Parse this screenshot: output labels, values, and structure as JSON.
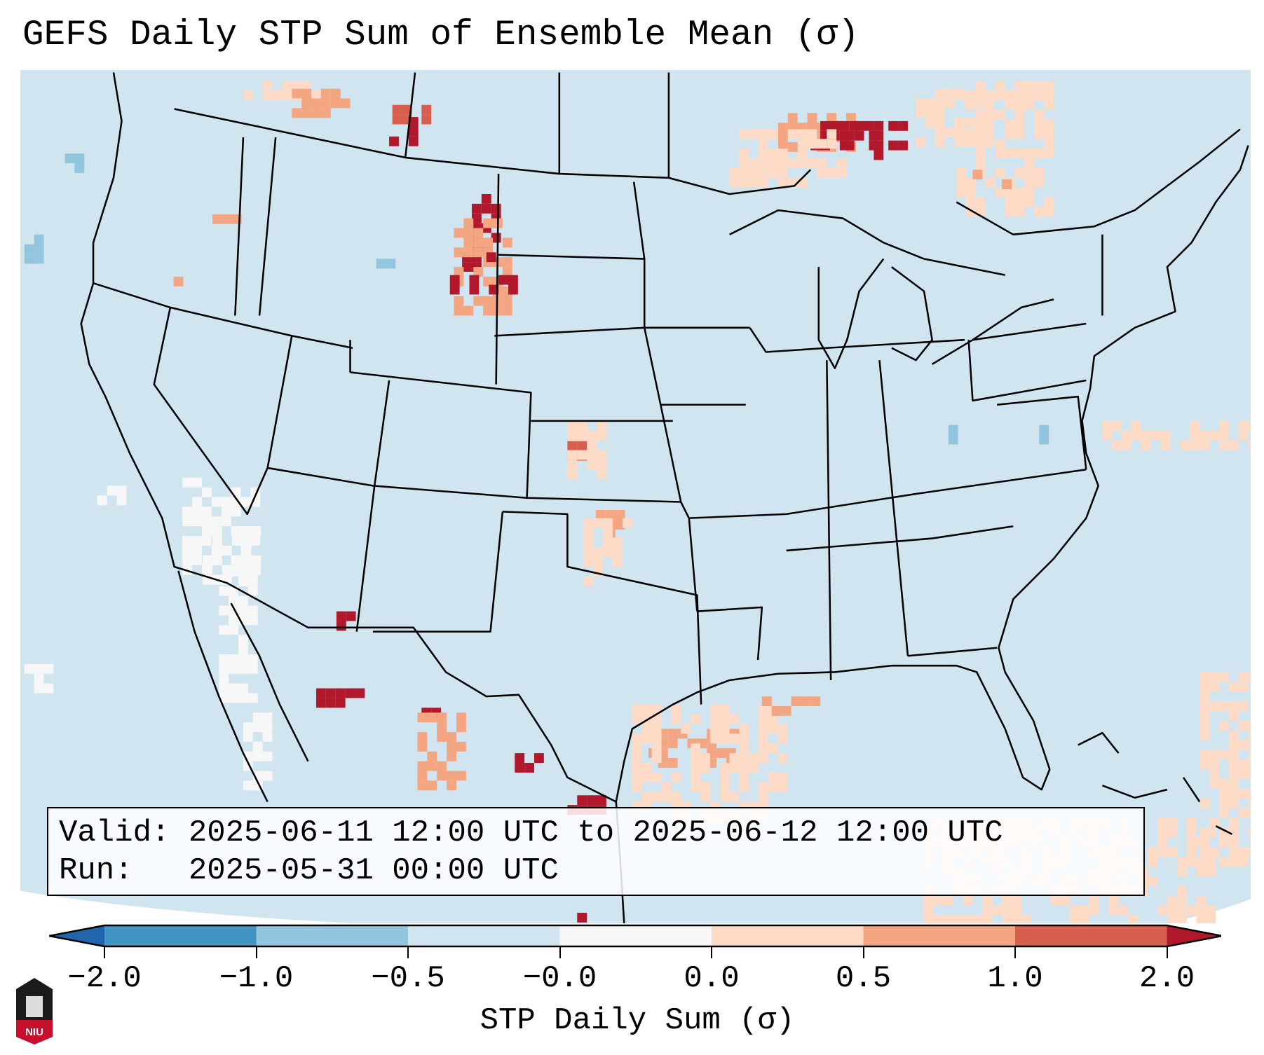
{
  "chart_data": {
    "type": "heatmap",
    "title": "GEFS Daily STP Sum of Ensemble Mean (σ)",
    "colorbar": {
      "label": "STP Daily Sum (σ)",
      "tick_labels": [
        "−2.0",
        "−1.0",
        "−0.5",
        "−0.0",
        "0.0",
        "0.5",
        "1.0",
        "2.0"
      ],
      "bounds": [
        -2.0,
        -1.0,
        -0.5,
        -0.0,
        0.0,
        0.5,
        1.0,
        2.0
      ],
      "colors": [
        "#4393c3",
        "#92c5de",
        "#d1e5f0",
        "#f7f7f7",
        "#fddbc7",
        "#f4a582",
        "#d6604d"
      ],
      "under_color": "#2166ac",
      "over_color": "#b2182b",
      "extend": "both"
    },
    "region": "Contiguous United States",
    "background_value_color": "#d1e5f0"
  },
  "infobox": {
    "valid_line": "Valid: 2025-06-11 12:00 UTC to 2025-06-12 12:00 UTC",
    "run_line": "Run:   2025-05-31 00:00 UTC"
  },
  "logo": {
    "text": "NIU"
  }
}
